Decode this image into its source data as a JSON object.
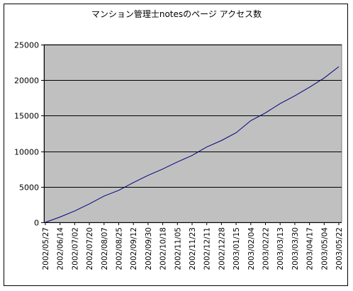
{
  "chart_data": {
    "type": "line",
    "title": "マンション管理士notesのページ アクセス数",
    "xlabel": "",
    "ylabel": "",
    "ylim": [
      0,
      25000
    ],
    "yticks": [
      0,
      5000,
      10000,
      15000,
      20000,
      25000
    ],
    "grid": true,
    "legend": "none",
    "categories": [
      "2002/05/27",
      "2002/06/14",
      "2002/07/02",
      "2002/07/20",
      "2002/08/07",
      "2002/08/25",
      "2002/09/12",
      "2002/09/30",
      "2002/10/18",
      "2002/11/05",
      "2002/11/23",
      "2002/12/11",
      "2002/12/28",
      "2003/01/15",
      "2003/02/04",
      "2003/02/22",
      "2003/03/13",
      "2003/03/30",
      "2003/04/17",
      "2003/05/04",
      "2003/05/22"
    ],
    "series": [
      {
        "values": [
          0,
          750,
          1600,
          2600,
          3700,
          4500,
          5600,
          6600,
          7500,
          8500,
          9400,
          10600,
          11500,
          12600,
          14300,
          15400,
          16700,
          17800,
          19000,
          20300,
          21900
        ]
      }
    ],
    "colors": {
      "plot_background": "#c0c0c0",
      "line": "#000080",
      "gridline": "#000000"
    }
  }
}
